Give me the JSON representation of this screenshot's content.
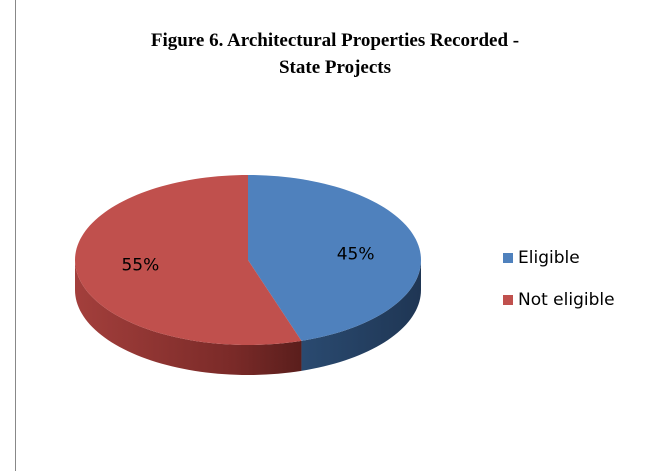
{
  "chart_data": {
    "type": "pie",
    "title": [
      "Figure 6. Architectural  Properties Recorded -",
      "State Projects"
    ],
    "categories": [
      "Eligible",
      "Not eligible"
    ],
    "values": [
      45,
      55
    ],
    "value_labels": [
      "45%",
      "55%"
    ],
    "colors": [
      "#4f81bd",
      "#c0504d"
    ],
    "legend": "right"
  }
}
